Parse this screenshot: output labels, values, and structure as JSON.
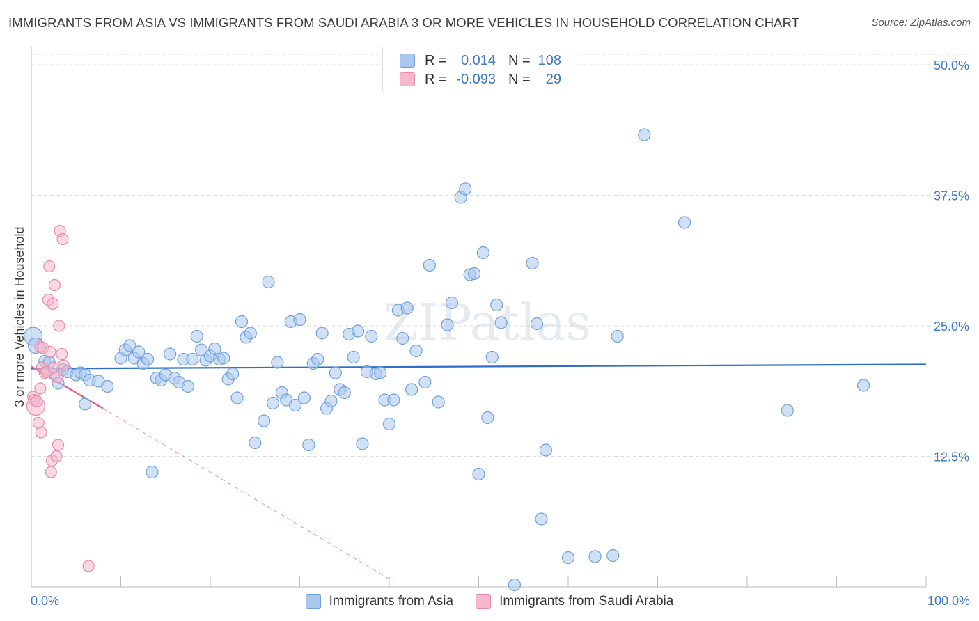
{
  "header": {
    "title": "IMMIGRANTS FROM ASIA VS IMMIGRANTS FROM SAUDI ARABIA 3 OR MORE VEHICLES IN HOUSEHOLD CORRELATION CHART",
    "source": "Source: ZipAtlas.com"
  },
  "watermark": "ZIPatlas",
  "legend": {
    "rows": [
      {
        "r_label": "R =",
        "r_value": "0.014",
        "n_label": "N =",
        "n_value": "108"
      },
      {
        "r_label": "R =",
        "r_value": "-0.093",
        "n_label": "N =",
        "n_value": "29"
      }
    ]
  },
  "colors": {
    "asia_fill": "#aac8ee",
    "asia_stroke": "#6fa0dc",
    "asia_line": "#2f6fc9",
    "saudi_fill": "#f6b8cc",
    "saudi_stroke": "#e98aa8",
    "saudi_line": "#e0608c",
    "tick_text": "#3d78c9",
    "grid": "#dddddd"
  },
  "chart_data": {
    "type": "scatter",
    "title": "IMMIGRANTS FROM ASIA VS IMMIGRANTS FROM SAUDI ARABIA 3 OR MORE VEHICLES IN HOUSEHOLD CORRELATION CHART",
    "xlabel": "",
    "ylabel": "3 or more Vehicles in Household",
    "xlim": [
      0,
      100
    ],
    "ylim": [
      0,
      51
    ],
    "x_tick_labels": [
      "0.0%",
      "100.0%"
    ],
    "y_ticks": [
      12.5,
      25.0,
      37.5,
      50.0
    ],
    "y_tick_labels": [
      "12.5%",
      "25.0%",
      "37.5%",
      "50.0%"
    ],
    "grid": "horizontal dashed",
    "legend_position": "bottom",
    "series": [
      {
        "name": "Immigrants from Asia",
        "R": 0.014,
        "N": 108,
        "trend": {
          "x": [
            0,
            100
          ],
          "y": [
            20.9,
            21.3
          ]
        },
        "points": [
          [
            0.2,
            24.0
          ],
          [
            0.5,
            23.1
          ],
          [
            1.5,
            21.6
          ],
          [
            2.0,
            21.5
          ],
          [
            2.5,
            20.4
          ],
          [
            3.0,
            19.5
          ],
          [
            3.5,
            20.8
          ],
          [
            4.0,
            20.6
          ],
          [
            5.0,
            20.3
          ],
          [
            5.5,
            20.5
          ],
          [
            6.0,
            20.3
          ],
          [
            6.5,
            19.8
          ],
          [
            6.0,
            17.5
          ],
          [
            7.5,
            19.7
          ],
          [
            8.5,
            19.2
          ],
          [
            10.0,
            21.9
          ],
          [
            10.5,
            22.7
          ],
          [
            11.0,
            23.1
          ],
          [
            11.5,
            21.9
          ],
          [
            12.0,
            22.5
          ],
          [
            12.5,
            21.4
          ],
          [
            13.0,
            21.8
          ],
          [
            13.5,
            11.0
          ],
          [
            14.0,
            20.0
          ],
          [
            14.5,
            19.8
          ],
          [
            15.0,
            20.3
          ],
          [
            15.5,
            22.3
          ],
          [
            16.0,
            20.0
          ],
          [
            16.5,
            19.6
          ],
          [
            17.0,
            21.8
          ],
          [
            17.5,
            19.2
          ],
          [
            18.0,
            21.8
          ],
          [
            18.5,
            24.0
          ],
          [
            19.0,
            22.7
          ],
          [
            19.5,
            21.7
          ],
          [
            20.0,
            22.1
          ],
          [
            20.5,
            22.8
          ],
          [
            21.0,
            21.8
          ],
          [
            21.5,
            21.9
          ],
          [
            22.0,
            19.9
          ],
          [
            22.5,
            20.4
          ],
          [
            23.0,
            18.1
          ],
          [
            23.5,
            25.4
          ],
          [
            24.0,
            23.9
          ],
          [
            24.5,
            24.3
          ],
          [
            25.0,
            13.8
          ],
          [
            26.0,
            15.9
          ],
          [
            26.5,
            29.2
          ],
          [
            27.0,
            17.6
          ],
          [
            27.5,
            21.5
          ],
          [
            28.0,
            18.6
          ],
          [
            28.5,
            17.9
          ],
          [
            29.0,
            25.4
          ],
          [
            29.5,
            17.4
          ],
          [
            30.0,
            25.6
          ],
          [
            30.5,
            18.1
          ],
          [
            31.0,
            13.6
          ],
          [
            31.5,
            21.4
          ],
          [
            32.0,
            21.8
          ],
          [
            32.5,
            24.3
          ],
          [
            33.0,
            17.1
          ],
          [
            33.5,
            17.8
          ],
          [
            34.0,
            20.5
          ],
          [
            34.5,
            18.9
          ],
          [
            35.0,
            18.6
          ],
          [
            35.5,
            24.2
          ],
          [
            36.0,
            22.0
          ],
          [
            36.5,
            24.5
          ],
          [
            37.0,
            13.7
          ],
          [
            37.5,
            20.6
          ],
          [
            38.0,
            24.0
          ],
          [
            38.5,
            20.4
          ],
          [
            39.0,
            20.5
          ],
          [
            39.5,
            17.9
          ],
          [
            40.0,
            15.6
          ],
          [
            40.5,
            17.9
          ],
          [
            41.0,
            26.5
          ],
          [
            41.5,
            23.8
          ],
          [
            42.0,
            26.7
          ],
          [
            42.5,
            18.9
          ],
          [
            43.0,
            22.6
          ],
          [
            44.0,
            19.6
          ],
          [
            44.5,
            30.8
          ],
          [
            45.5,
            17.7
          ],
          [
            46.5,
            25.1
          ],
          [
            47.0,
            27.2
          ],
          [
            48.0,
            37.3
          ],
          [
            48.5,
            38.1
          ],
          [
            49.0,
            29.9
          ],
          [
            49.5,
            30.0
          ],
          [
            50.0,
            10.8
          ],
          [
            50.5,
            32.0
          ],
          [
            51.0,
            16.2
          ],
          [
            51.5,
            22.0
          ],
          [
            52.0,
            27.0
          ],
          [
            52.5,
            25.3
          ],
          [
            54.0,
            0.2
          ],
          [
            56.0,
            31.0
          ],
          [
            56.5,
            25.2
          ],
          [
            57.0,
            6.5
          ],
          [
            57.5,
            13.1
          ],
          [
            60.0,
            2.8
          ],
          [
            63.0,
            2.9
          ],
          [
            65.0,
            3.0
          ],
          [
            65.5,
            24.0
          ],
          [
            68.5,
            43.3
          ],
          [
            73.0,
            34.9
          ],
          [
            84.5,
            16.9
          ],
          [
            93.0,
            19.3
          ]
        ]
      },
      {
        "name": "Immigrants from Saudi Arabia",
        "R": -0.093,
        "N": 29,
        "trend_solid": {
          "x": [
            0,
            8
          ],
          "y": [
            21.1,
            17.1
          ]
        },
        "trend_dashed": {
          "x": [
            8,
            40.5
          ],
          "y": [
            17.1,
            0.5
          ]
        },
        "points": [
          [
            0.2,
            18.2
          ],
          [
            0.3,
            17.9
          ],
          [
            0.5,
            17.3
          ],
          [
            0.6,
            17.8
          ],
          [
            0.8,
            15.7
          ],
          [
            1.0,
            19.0
          ],
          [
            1.2,
            21.0
          ],
          [
            1.1,
            14.8
          ],
          [
            1.0,
            23.0
          ],
          [
            1.3,
            22.9
          ],
          [
            1.5,
            20.5
          ],
          [
            1.7,
            20.6
          ],
          [
            1.9,
            27.5
          ],
          [
            2.0,
            30.7
          ],
          [
            2.1,
            22.5
          ],
          [
            2.2,
            11.0
          ],
          [
            2.3,
            12.1
          ],
          [
            2.4,
            27.1
          ],
          [
            2.5,
            21.0
          ],
          [
            2.6,
            28.9
          ],
          [
            2.8,
            12.5
          ],
          [
            2.9,
            20.1
          ],
          [
            3.0,
            13.6
          ],
          [
            3.1,
            25.0
          ],
          [
            3.2,
            34.1
          ],
          [
            3.4,
            22.3
          ],
          [
            3.5,
            33.3
          ],
          [
            3.6,
            21.2
          ],
          [
            6.4,
            2.0
          ]
        ]
      }
    ]
  },
  "bottom_legend": {
    "items": [
      "Immigrants from Asia",
      "Immigrants from Saudi Arabia"
    ]
  }
}
